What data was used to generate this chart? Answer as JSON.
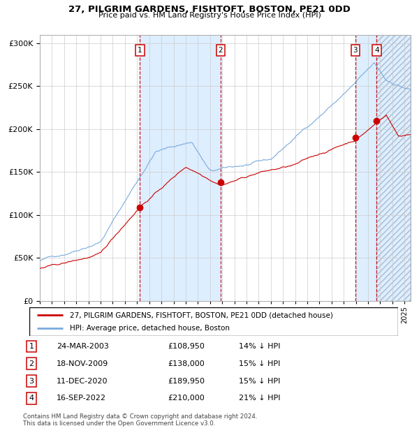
{
  "title1": "27, PILGRIM GARDENS, FISHTOFT, BOSTON, PE21 0DD",
  "title2": "Price paid vs. HM Land Registry's House Price Index (HPI)",
  "sales": [
    {
      "num": 1,
      "date_label": "24-MAR-2003",
      "date_x": 2003.23,
      "price": 108950,
      "pct": "14%"
    },
    {
      "num": 2,
      "date_label": "18-NOV-2009",
      "date_x": 2009.88,
      "price": 138000,
      "pct": "15%"
    },
    {
      "num": 3,
      "date_label": "11-DEC-2020",
      "date_x": 2020.95,
      "price": 189950,
      "pct": "15%"
    },
    {
      "num": 4,
      "date_label": "16-SEP-2022",
      "date_x": 2022.71,
      "price": 210000,
      "pct": "21%"
    }
  ],
  "legend1": "27, PILGRIM GARDENS, FISHTOFT, BOSTON, PE21 0DD (detached house)",
  "legend2": "HPI: Average price, detached house, Boston",
  "footnote1": "Contains HM Land Registry data © Crown copyright and database right 2024.",
  "footnote2": "This data is licensed under the Open Government Licence v3.0.",
  "hpi_color": "#7aaadd",
  "price_color": "#cc0000",
  "sale_dot_color": "#cc0000",
  "bg_highlight": "#ddeeff",
  "dashed_color": "#cc0000",
  "grid_color": "#cccccc",
  "xmin": 1995.0,
  "xmax": 2025.5,
  "ymin": 0,
  "ymax": 310000
}
